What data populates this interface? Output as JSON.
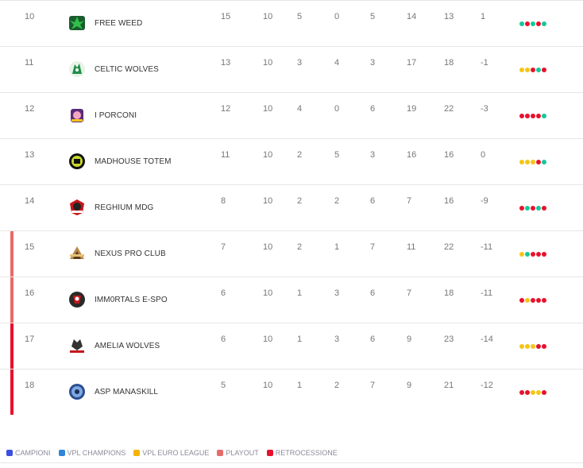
{
  "rows": [
    {
      "pos": "10",
      "team": "FREE WEED",
      "pt": "15",
      "g": "10",
      "v": "5",
      "n": "0",
      "p": "5",
      "gf": "14",
      "gs": "13",
      "dr": "1",
      "zone": "",
      "form": [
        "W",
        "L",
        "W",
        "L",
        "W"
      ],
      "logo": "free-weed-logo"
    },
    {
      "pos": "11",
      "team": "CELTIC WOLVES",
      "pt": "13",
      "g": "10",
      "v": "3",
      "n": "4",
      "p": "3",
      "gf": "17",
      "gs": "18",
      "dr": "-1",
      "zone": "",
      "form": [
        "D",
        "D",
        "L",
        "W",
        "L"
      ],
      "logo": "celtic-wolves-logo"
    },
    {
      "pos": "12",
      "team": "I PORCONI",
      "pt": "12",
      "g": "10",
      "v": "4",
      "n": "0",
      "p": "6",
      "gf": "19",
      "gs": "22",
      "dr": "-3",
      "zone": "",
      "form": [
        "L",
        "L",
        "L",
        "L",
        "W"
      ],
      "logo": "i-porconi-logo"
    },
    {
      "pos": "13",
      "team": "MADHOUSE TOTEM",
      "pt": "11",
      "g": "10",
      "v": "2",
      "n": "5",
      "p": "3",
      "gf": "16",
      "gs": "16",
      "dr": "0",
      "zone": "",
      "form": [
        "D",
        "D",
        "D",
        "L",
        "W"
      ],
      "logo": "madhouse-totem-logo"
    },
    {
      "pos": "14",
      "team": "REGHIUM MDG",
      "pt": "8",
      "g": "10",
      "v": "2",
      "n": "2",
      "p": "6",
      "gf": "7",
      "gs": "16",
      "dr": "-9",
      "zone": "",
      "form": [
        "L",
        "W",
        "L",
        "W",
        "L"
      ],
      "logo": "reghium-mdg-logo"
    },
    {
      "pos": "15",
      "team": "NEXUS PRO CLUB",
      "pt": "7",
      "g": "10",
      "v": "2",
      "n": "1",
      "p": "7",
      "gf": "11",
      "gs": "22",
      "dr": "-11",
      "zone": "playout",
      "form": [
        "D",
        "W",
        "L",
        "L",
        "L"
      ],
      "logo": "nexus-pro-club-logo"
    },
    {
      "pos": "16",
      "team": "IMM0RTALS E-SPO",
      "pt": "6",
      "g": "10",
      "v": "1",
      "n": "3",
      "p": "6",
      "gf": "7",
      "gs": "18",
      "dr": "-11",
      "zone": "playout",
      "form": [
        "L",
        "D",
        "L",
        "L",
        "L"
      ],
      "logo": "immortals-e-spo-logo"
    },
    {
      "pos": "17",
      "team": "AMELIA WOLVES",
      "pt": "6",
      "g": "10",
      "v": "1",
      "n": "3",
      "p": "6",
      "gf": "9",
      "gs": "23",
      "dr": "-14",
      "zone": "retrocessione",
      "form": [
        "D",
        "D",
        "D",
        "L",
        "L"
      ],
      "logo": "amelia-wolves-logo"
    },
    {
      "pos": "18",
      "team": "ASP MANASKILL",
      "pt": "5",
      "g": "10",
      "v": "1",
      "n": "2",
      "p": "7",
      "gf": "9",
      "gs": "21",
      "dr": "-12",
      "zone": "retrocessione",
      "form": [
        "L",
        "L",
        "D",
        "D",
        "L"
      ],
      "logo": "asp-manaskill-logo"
    }
  ],
  "zone_colors": {
    "playout": "#e96a6a",
    "retrocessione": "#e8112d"
  },
  "legend": [
    {
      "label": "CAMPIONI",
      "color": "#3b4fe0"
    },
    {
      "label": "VPL CHAMPIONS",
      "color": "#2f86d6"
    },
    {
      "label": "VPL EURO LEAGUE",
      "color": "#f5b400"
    },
    {
      "label": "PLAYOUT",
      "color": "#e96a6a"
    },
    {
      "label": "RETROCESSIONE",
      "color": "#e8112d"
    }
  ]
}
